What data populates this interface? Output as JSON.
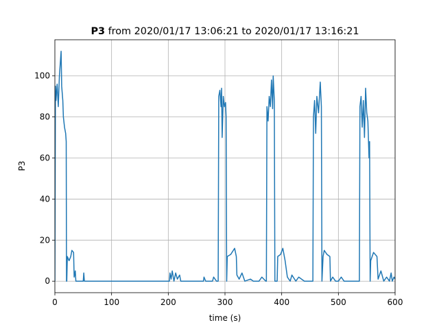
{
  "chart_data": {
    "type": "line",
    "title": [
      "P3",
      "from 2020/01/17 13:06:21 to 2020/01/17 13:16:21"
    ],
    "x_label": "time (s)",
    "y_label": "P3",
    "color": "#1f77b4",
    "grid": true,
    "xlim": [
      0,
      600
    ],
    "ylim": [
      -5.6,
      117.6
    ],
    "xticks": [
      0,
      100,
      200,
      300,
      400,
      500,
      600
    ],
    "yticks": [
      0,
      20,
      40,
      60,
      80,
      100
    ],
    "x": [
      0,
      1,
      2,
      4,
      6,
      8,
      10,
      11,
      12,
      14,
      15,
      17,
      19,
      20,
      20.5,
      21,
      22,
      25,
      28,
      30,
      33,
      34,
      36,
      37,
      50,
      51,
      52,
      202,
      203,
      205,
      207,
      210,
      213,
      216,
      220,
      222,
      262,
      263,
      266,
      278,
      280,
      285,
      288,
      289,
      291,
      293,
      294,
      295,
      297,
      299,
      301,
      302,
      303,
      304,
      310,
      317,
      320,
      321,
      325,
      330,
      335,
      345,
      350,
      360,
      365,
      372,
      373,
      374,
      376,
      378,
      380,
      382,
      384,
      385,
      387,
      388,
      392,
      393,
      398,
      402,
      406,
      410,
      415,
      418,
      425,
      430,
      440,
      455,
      456,
      458,
      460,
      462,
      465,
      468,
      470,
      471,
      473,
      475,
      480,
      485,
      486,
      490,
      495,
      500,
      505,
      510,
      537,
      538,
      540,
      542,
      544,
      546,
      548,
      550,
      552,
      554,
      555,
      556,
      557,
      562,
      568,
      570,
      575,
      580,
      585,
      590,
      593,
      595,
      598,
      600
    ],
    "values": [
      0,
      95,
      88,
      96,
      85,
      100,
      108,
      112,
      95,
      88,
      80,
      75,
      72,
      68,
      0,
      0,
      12,
      10,
      12,
      15,
      14,
      2,
      5,
      0,
      0,
      4,
      0,
      0,
      4,
      1,
      5,
      0,
      4,
      1,
      3,
      0,
      0,
      2,
      0,
      0,
      2,
      0,
      0,
      90,
      93,
      85,
      94,
      70,
      90,
      85,
      87,
      80,
      0,
      12,
      13,
      16,
      12,
      3,
      1,
      4,
      0,
      1,
      0,
      0,
      2,
      0,
      0,
      85,
      78,
      90,
      85,
      98,
      84,
      100,
      88,
      0,
      0,
      12,
      13,
      16,
      10,
      2,
      0,
      3,
      0,
      2,
      0,
      0,
      80,
      88,
      72,
      90,
      82,
      97,
      85,
      0,
      12,
      15,
      13,
      12,
      0,
      2,
      0,
      0,
      2,
      0,
      0,
      85,
      90,
      75,
      88,
      70,
      94,
      82,
      78,
      60,
      68,
      0,
      10,
      14,
      12,
      1,
      5,
      0,
      2,
      0,
      4,
      0,
      2,
      1
    ]
  }
}
